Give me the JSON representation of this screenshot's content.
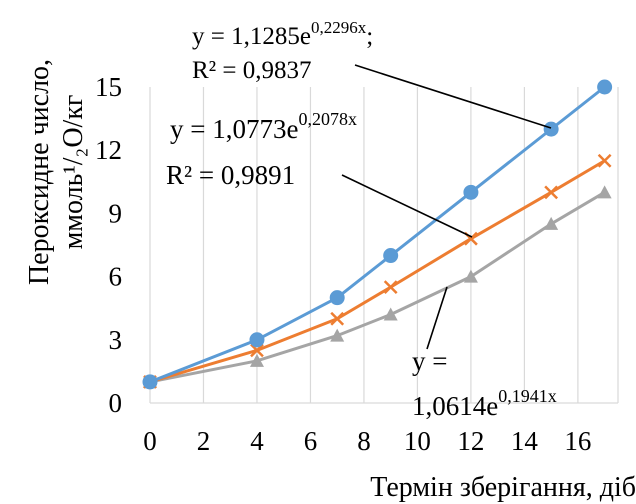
{
  "chart_data": {
    "type": "line",
    "x": [
      0,
      4,
      7,
      9,
      12,
      15,
      17
    ],
    "series": [
      {
        "color": "#5b9bd5",
        "marker": "circle",
        "values": [
          1,
          3,
          5,
          7,
          10,
          13,
          15
        ]
      },
      {
        "color": "#ed7d31",
        "marker": "x",
        "values": [
          1,
          2.5,
          4,
          5.5,
          7.8,
          10,
          11.5
        ]
      },
      {
        "color": "#a5a5a5",
        "marker": "triangle",
        "values": [
          1,
          2,
          3.2,
          4.2,
          6,
          8.5,
          10
        ]
      }
    ],
    "x_ticks": [
      "0",
      "2",
      "4",
      "6",
      "8",
      "10",
      "12",
      "14",
      "16"
    ],
    "y_ticks": [
      "0",
      "3",
      "6",
      "9",
      "12",
      "15"
    ],
    "xlim": [
      0,
      17.5
    ],
    "ylim": [
      0,
      15
    ],
    "grid": "vertical",
    "xlabel": "Термін зберігання, діб",
    "ylabel_line1": "Пероксидне число,",
    "ylabel_line2": "ммоль¹/₂О/кг",
    "annotations": [
      {
        "line1": "y = 1,1285e",
        "exp1": "0,2296x",
        "suffix1": ";",
        "line2": "R² = 0,9837"
      },
      {
        "line1": "y = 1,0773e",
        "exp1": "0,2078x",
        "line2": "R² = 0,9891"
      },
      {
        "line1": "y =",
        "line2": "1,0614e",
        "exp2": "0,1941x"
      }
    ]
  }
}
